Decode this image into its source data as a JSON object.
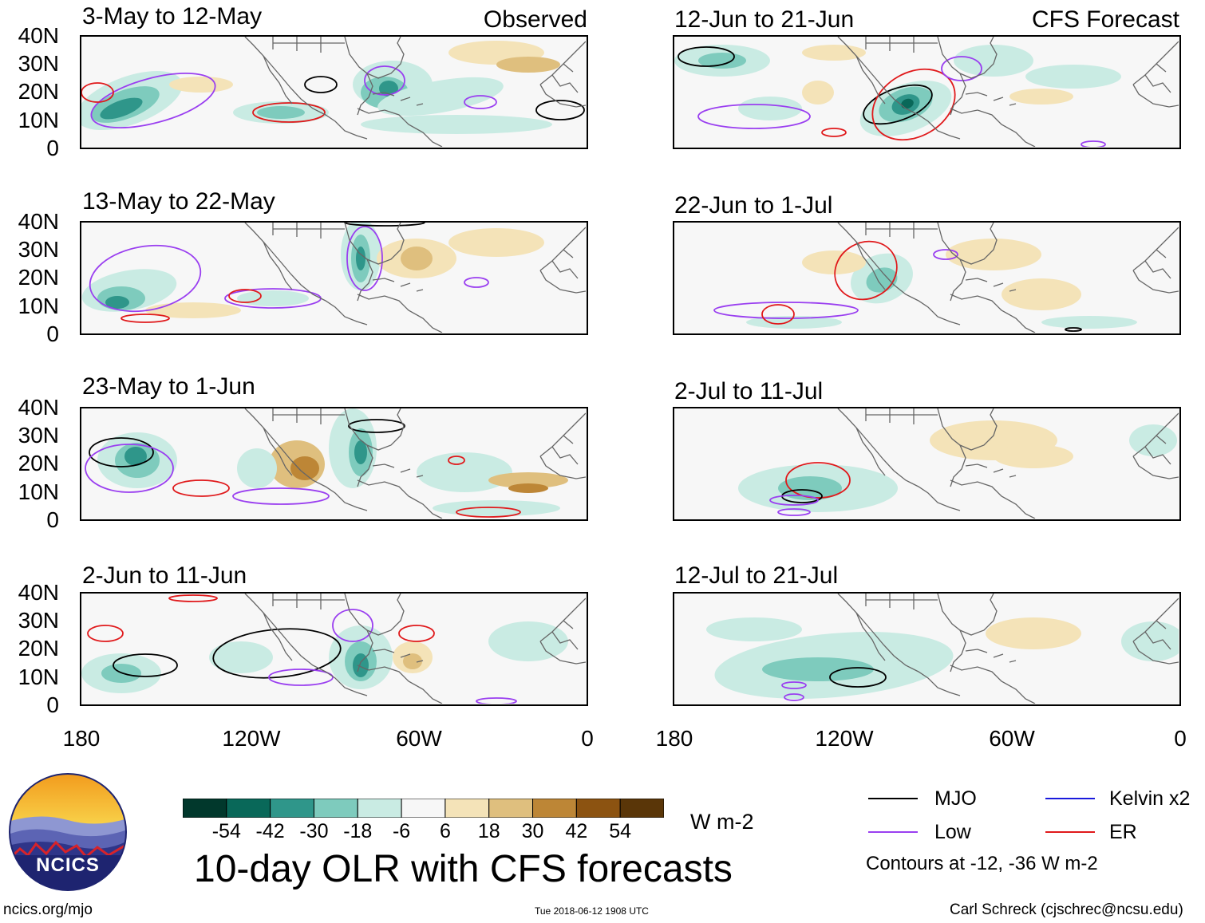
{
  "chart_data": {
    "type": "heatmap",
    "title": "10-day OLR with CFS forecasts",
    "units": "W m-2",
    "colorbar": {
      "labels": [
        "-54",
        "-42",
        "-30",
        "-18",
        "-6",
        "6",
        "18",
        "30",
        "42",
        "54"
      ],
      "colors": [
        "#01382c",
        "#096859",
        "#2f968a",
        "#7ecbbd",
        "#c9ebe3",
        "#f7f7f7",
        "#f4e3b8",
        "#dfbf7e",
        "#bd8636",
        "#8c5311",
        "#5a3608"
      ]
    },
    "lat_ticks": [
      "40N",
      "30N",
      "20N",
      "10N",
      "0"
    ],
    "lon_ticks": [
      "180",
      "120W",
      "60W",
      "0"
    ],
    "observed_label": "Observed",
    "forecast_label": "CFS Forecast",
    "observed_panels": [
      {
        "period": "3-May to 12-May"
      },
      {
        "period": "13-May to 22-May"
      },
      {
        "period": "23-May to 1-Jun"
      },
      {
        "period": "2-Jun to 11-Jun"
      }
    ],
    "forecast_panels": [
      {
        "period": "12-Jun to 21-Jun"
      },
      {
        "period": "22-Jun to 1-Jul"
      },
      {
        "period": "2-Jul to 11-Jul"
      },
      {
        "period": "12-Jul to 21-Jul"
      }
    ],
    "legend": [
      {
        "label": "MJO",
        "color": "#000000"
      },
      {
        "label": "Kelvin x2",
        "color": "#1a1adc"
      },
      {
        "label": "Low",
        "color": "#9a3ff0"
      },
      {
        "label": "ER",
        "color": "#e0191b"
      }
    ],
    "contours_note": "Contours at -12, -36 W m-2"
  },
  "logo": {
    "text": "NCICS"
  },
  "footer": {
    "url": "ncics.org/mjo",
    "timestamp": "Tue 2018-06-12 1908 UTC",
    "author": "Carl Schreck (cjschrec@ncsu.edu)"
  }
}
